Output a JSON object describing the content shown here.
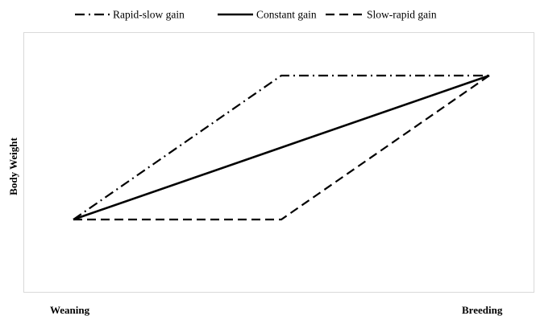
{
  "chart_data": {
    "type": "line",
    "title": "",
    "xlabel": "",
    "ylabel": "Body Weight",
    "categories": [
      "Weaning",
      "Breeding"
    ],
    "x": [
      0,
      0.5,
      1
    ],
    "series": [
      {
        "name": "Rapid-slow gain",
        "style": "dash-dot",
        "values": [
          0,
          1,
          1
        ]
      },
      {
        "name": "Constant gain",
        "style": "solid",
        "values": [
          0,
          0.5,
          1
        ]
      },
      {
        "name": "Slow-rapid gain",
        "style": "dashed",
        "values": [
          0,
          0,
          1
        ]
      }
    ],
    "legend_position": "top",
    "grid": false,
    "line_color": "#000000",
    "axis_color": "#d9d9d9"
  }
}
